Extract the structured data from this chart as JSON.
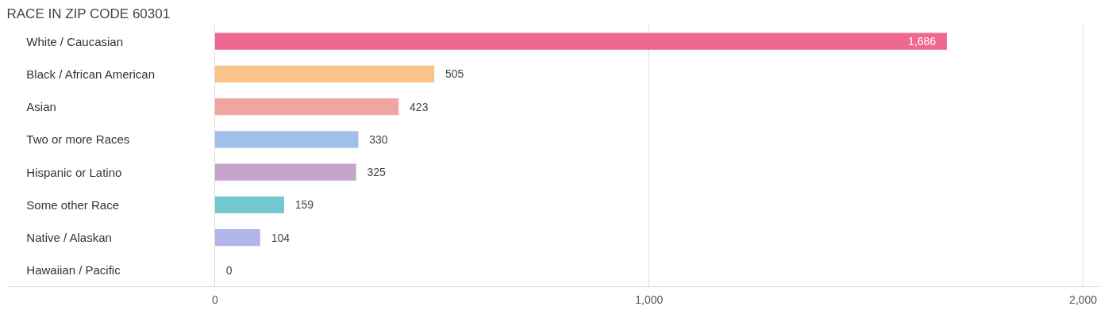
{
  "chart_data": {
    "type": "bar",
    "orientation": "horizontal",
    "title": "RACE IN ZIP CODE 60301",
    "categories": [
      "White / Caucasian",
      "Black / African American",
      "Asian",
      "Two or more Races",
      "Hispanic or Latino",
      "Some other Race",
      "Native / Alaskan",
      "Hawaiian / Pacific"
    ],
    "values": [
      1686,
      505,
      423,
      330,
      325,
      159,
      104,
      0
    ],
    "value_labels": [
      "1,686",
      "505",
      "423",
      "330",
      "325",
      "159",
      "104",
      "0"
    ],
    "colors": [
      "#f06792",
      "#f9c38a",
      "#f0a5a0",
      "#9fc0e8",
      "#c6a5cc",
      "#71c9cd",
      "#b2b5ea",
      "#f9a8c0"
    ],
    "xlim": [
      -480,
      2040
    ],
    "xticks": [
      {
        "value": 0,
        "label": "0"
      },
      {
        "value": 1000,
        "label": "1,000"
      },
      {
        "value": 2000,
        "label": "2,000"
      }
    ],
    "grid": "x"
  }
}
